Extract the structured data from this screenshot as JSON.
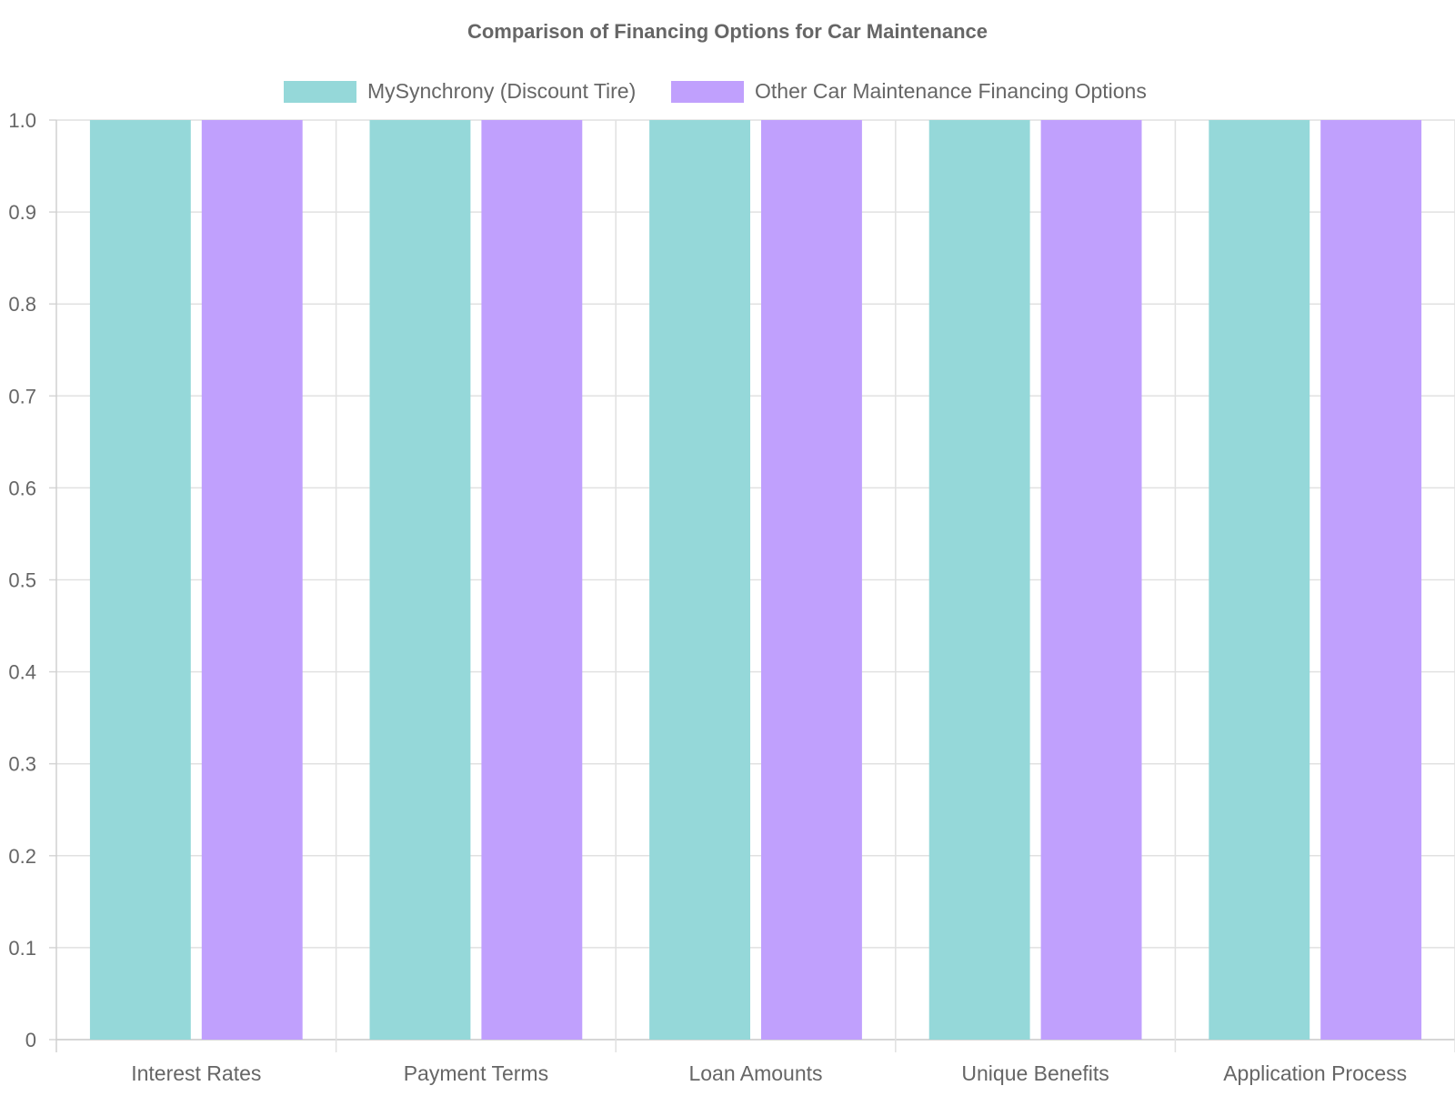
{
  "chart_data": {
    "type": "bar",
    "title": "Comparison of Financing Options for Car Maintenance",
    "categories": [
      "Interest Rates",
      "Payment Terms",
      "Loan Amounts",
      "Unique Benefits",
      "Application Process"
    ],
    "series": [
      {
        "name": "MySynchrony (Discount Tire)",
        "values": [
          1,
          1,
          1,
          1,
          1
        ],
        "color": "#95d8d9"
      },
      {
        "name": "Other Car Maintenance Financing Options",
        "values": [
          1,
          1,
          1,
          1,
          1
        ],
        "color": "#c0a0fd"
      }
    ],
    "ylim": [
      0,
      1.0
    ],
    "yticks": [
      "0",
      "0.1",
      "0.2",
      "0.3",
      "0.4",
      "0.5",
      "0.6",
      "0.7",
      "0.8",
      "0.9",
      "1.0"
    ],
    "xlabel": "",
    "ylabel": "",
    "grid": true,
    "legend_position": "top"
  }
}
